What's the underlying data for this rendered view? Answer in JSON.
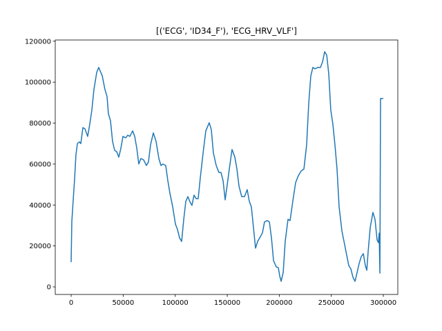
{
  "chart_data": {
    "type": "line",
    "title": "[('ECG', 'ID34_F'), 'ECG_HRV_VLF']",
    "x": [
      0,
      660,
      2000,
      3300,
      4600,
      6000,
      8000,
      9300,
      11300,
      13300,
      15900,
      17900,
      19900,
      21900,
      24600,
      26500,
      27900,
      29900,
      32500,
      34500,
      35800,
      37800,
      39800,
      41800,
      43800,
      45800,
      47800,
      49800,
      52400,
      54400,
      56400,
      59100,
      61100,
      63100,
      65000,
      67000,
      69700,
      72300,
      74300,
      76300,
      79000,
      81600,
      84300,
      86300,
      88300,
      90900,
      92900,
      94900,
      97600,
      100200,
      102200,
      104200,
      106200,
      108200,
      110200,
      112200,
      114200,
      116100,
      118100,
      120100,
      122100,
      124100,
      126800,
      129400,
      132700,
      134700,
      136700,
      139400,
      142000,
      144000,
      146000,
      148000,
      150000,
      152000,
      154600,
      157300,
      159300,
      161300,
      163900,
      166600,
      169200,
      171200,
      173200,
      175200,
      177200,
      179200,
      181900,
      183800,
      185800,
      188500,
      190500,
      192500,
      194500,
      197100,
      199100,
      200400,
      201800,
      203800,
      205700,
      208400,
      210400,
      213000,
      215700,
      218300,
      221000,
      223700,
      226300,
      228300,
      230300,
      232300,
      234300,
      236900,
      239600,
      241600,
      243600,
      245600,
      247600,
      249500,
      251500,
      253500,
      255500,
      257500,
      260200,
      262200,
      264800,
      266800,
      268800,
      270800,
      272800,
      274800,
      276800,
      278800,
      280800,
      282700,
      284100,
      285400,
      287400,
      290000,
      292000,
      294000,
      295300,
      296000,
      296700,
      297300,
      300000
    ],
    "series": [
      {
        "color": "#1f77b4",
        "values": [
          12100,
          32000,
          42500,
          52500,
          64400,
          70000,
          70800,
          70000,
          77800,
          77200,
          73500,
          79500,
          86300,
          96400,
          104800,
          107200,
          105500,
          103100,
          96400,
          93000,
          84600,
          81200,
          71100,
          66700,
          66000,
          63400,
          67700,
          73500,
          72800,
          74100,
          73500,
          76200,
          73500,
          67700,
          60000,
          62700,
          62000,
          59300,
          61000,
          69400,
          75200,
          71100,
          62700,
          59300,
          60000,
          59300,
          51900,
          45800,
          39100,
          30700,
          28000,
          23900,
          22200,
          33000,
          41800,
          44100,
          41500,
          39800,
          44800,
          43100,
          43100,
          53200,
          65400,
          76200,
          80200,
          76800,
          65400,
          59300,
          55900,
          55900,
          51900,
          42500,
          49900,
          57600,
          67100,
          63400,
          57600,
          49200,
          44100,
          44100,
          47500,
          41800,
          39100,
          29000,
          18900,
          22200,
          24600,
          26300,
          31700,
          32400,
          31700,
          23900,
          12800,
          9800,
          9400,
          5400,
          2700,
          7100,
          22200,
          33000,
          32400,
          41800,
          50900,
          54300,
          56600,
          57600,
          69400,
          89600,
          103100,
          107200,
          106500,
          107200,
          107200,
          109900,
          114900,
          113200,
          103800,
          86300,
          79500,
          69400,
          57600,
          39100,
          27300,
          22200,
          15500,
          10400,
          8800,
          4700,
          2700,
          7100,
          11500,
          14800,
          16200,
          10400,
          8100,
          17200,
          29000,
          36400,
          33000,
          22900,
          21600,
          26300,
          6700,
          92000,
          92000
        ]
      }
    ],
    "xlim": [
      -15265,
      313900
    ],
    "ylim": [
      -3700,
      120600
    ],
    "xticks": [
      0,
      50000,
      100000,
      150000,
      200000,
      250000,
      300000
    ],
    "yticks": [
      0,
      20000,
      40000,
      60000,
      80000,
      100000,
      120000
    ]
  }
}
